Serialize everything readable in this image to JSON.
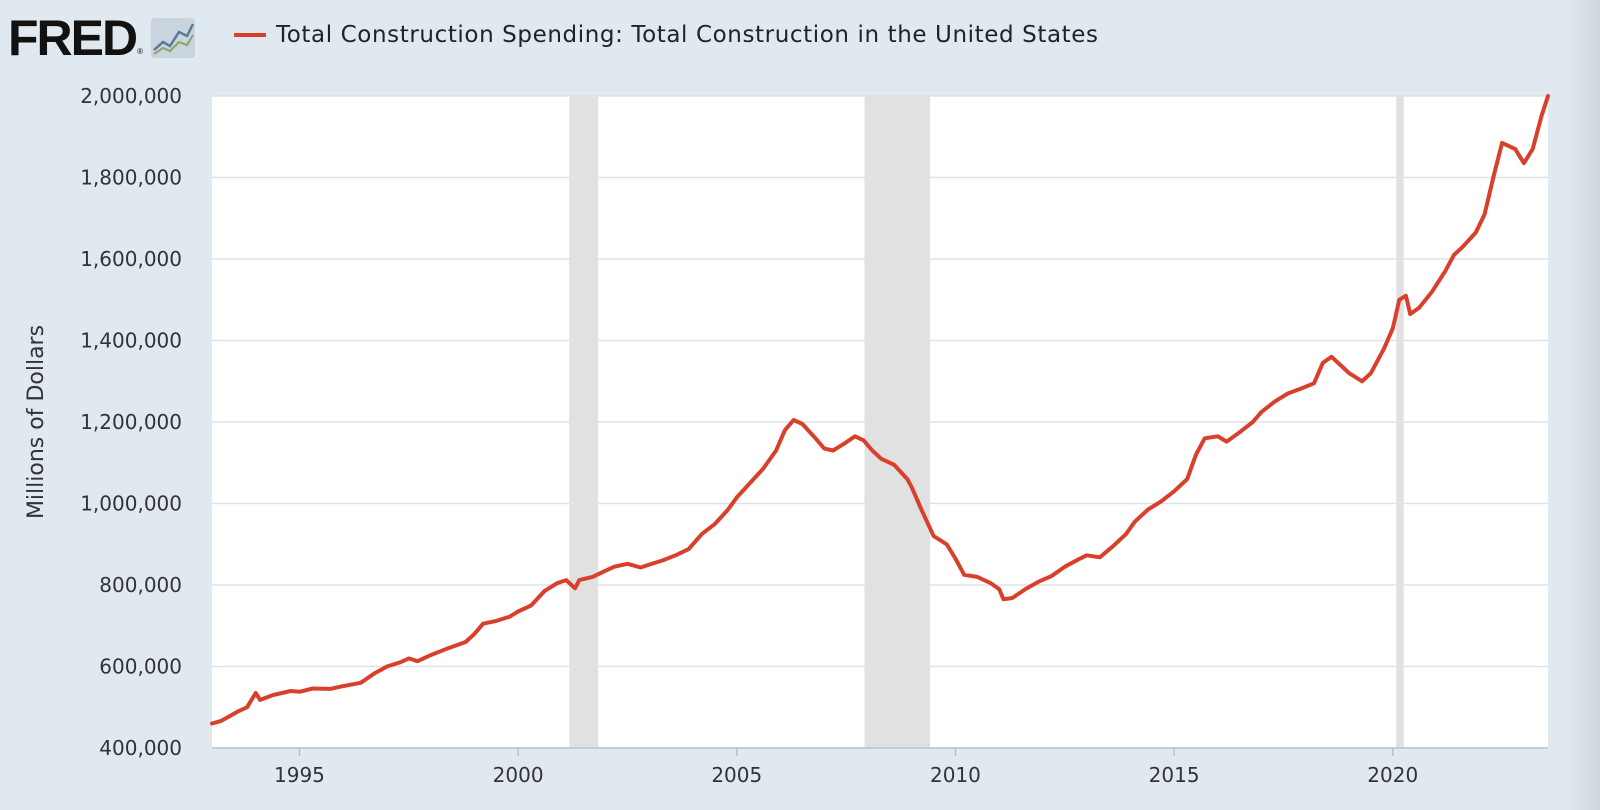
{
  "header": {
    "logo_text": "FRED",
    "logo_reg": "®",
    "logo_icon": "trend-chart-icon",
    "series_label": "Total Construction Spending: Total Construction in the United States"
  },
  "colors": {
    "series": "#d9402b",
    "recession": "#e1e1e1",
    "background": "#e1e9f0",
    "plot": "#ffffff",
    "grid": "#dde3ea"
  },
  "chart_data": {
    "type": "line",
    "title": "",
    "xlabel": "",
    "ylabel": "Millions of Dollars",
    "xlim": [
      1993.0,
      2023.55
    ],
    "ylim": [
      400000,
      2000000
    ],
    "yticks": [
      400000,
      600000,
      800000,
      1000000,
      1200000,
      1400000,
      1600000,
      1800000,
      2000000
    ],
    "ytick_labels": [
      "400,000",
      "600,000",
      "800,000",
      "1,000,000",
      "1,200,000",
      "1,400,000",
      "1,600,000",
      "1,800,000",
      "2,000,000"
    ],
    "xticks": [
      1995,
      2000,
      2005,
      2010,
      2015,
      2020
    ],
    "xtick_labels": [
      "1995",
      "2000",
      "2005",
      "2010",
      "2015",
      "2020"
    ],
    "grid": true,
    "legend": "top-left",
    "recessions": [
      [
        2001.17,
        2001.83
      ],
      [
        2007.92,
        2009.42
      ],
      [
        2020.08,
        2020.25
      ]
    ],
    "series": [
      {
        "name": "Total Construction Spending: Total Construction in the United States",
        "color": "#d9402b",
        "points": [
          [
            1993.0,
            460000
          ],
          [
            1993.2,
            466000
          ],
          [
            1993.4,
            478000
          ],
          [
            1993.6,
            490000
          ],
          [
            1993.8,
            500000
          ],
          [
            1994.0,
            535000
          ],
          [
            1994.1,
            518000
          ],
          [
            1994.4,
            530000
          ],
          [
            1994.8,
            540000
          ],
          [
            1995.0,
            538000
          ],
          [
            1995.3,
            546000
          ],
          [
            1995.7,
            545000
          ],
          [
            1996.0,
            552000
          ],
          [
            1996.4,
            560000
          ],
          [
            1996.7,
            582000
          ],
          [
            1997.0,
            600000
          ],
          [
            1997.3,
            610000
          ],
          [
            1997.5,
            620000
          ],
          [
            1997.7,
            613000
          ],
          [
            1998.0,
            628000
          ],
          [
            1998.4,
            645000
          ],
          [
            1998.8,
            660000
          ],
          [
            1999.0,
            680000
          ],
          [
            1999.2,
            705000
          ],
          [
            1999.5,
            712000
          ],
          [
            1999.8,
            722000
          ],
          [
            2000.0,
            735000
          ],
          [
            2000.3,
            750000
          ],
          [
            2000.6,
            785000
          ],
          [
            2000.9,
            805000
          ],
          [
            2001.1,
            812000
          ],
          [
            2001.3,
            792000
          ],
          [
            2001.4,
            812000
          ],
          [
            2001.7,
            820000
          ],
          [
            2002.0,
            835000
          ],
          [
            2002.2,
            845000
          ],
          [
            2002.5,
            852000
          ],
          [
            2002.8,
            843000
          ],
          [
            2003.0,
            850000
          ],
          [
            2003.3,
            860000
          ],
          [
            2003.6,
            873000
          ],
          [
            2003.9,
            888000
          ],
          [
            2004.2,
            925000
          ],
          [
            2004.5,
            950000
          ],
          [
            2004.8,
            985000
          ],
          [
            2005.0,
            1015000
          ],
          [
            2005.3,
            1050000
          ],
          [
            2005.6,
            1085000
          ],
          [
            2005.9,
            1130000
          ],
          [
            2006.1,
            1180000
          ],
          [
            2006.3,
            1205000
          ],
          [
            2006.5,
            1195000
          ],
          [
            2006.8,
            1160000
          ],
          [
            2007.0,
            1135000
          ],
          [
            2007.2,
            1130000
          ],
          [
            2007.5,
            1150000
          ],
          [
            2007.7,
            1165000
          ],
          [
            2007.9,
            1155000
          ],
          [
            2008.1,
            1130000
          ],
          [
            2008.3,
            1110000
          ],
          [
            2008.6,
            1095000
          ],
          [
            2008.9,
            1060000
          ],
          [
            2009.0,
            1040000
          ],
          [
            2009.2,
            990000
          ],
          [
            2009.5,
            920000
          ],
          [
            2009.8,
            900000
          ],
          [
            2010.0,
            865000
          ],
          [
            2010.2,
            825000
          ],
          [
            2010.5,
            820000
          ],
          [
            2010.8,
            805000
          ],
          [
            2011.0,
            790000
          ],
          [
            2011.1,
            765000
          ],
          [
            2011.3,
            768000
          ],
          [
            2011.6,
            790000
          ],
          [
            2011.9,
            808000
          ],
          [
            2012.2,
            822000
          ],
          [
            2012.5,
            845000
          ],
          [
            2012.8,
            862000
          ],
          [
            2013.0,
            873000
          ],
          [
            2013.3,
            868000
          ],
          [
            2013.6,
            895000
          ],
          [
            2013.9,
            925000
          ],
          [
            2014.1,
            955000
          ],
          [
            2014.4,
            985000
          ],
          [
            2014.7,
            1005000
          ],
          [
            2015.0,
            1030000
          ],
          [
            2015.3,
            1060000
          ],
          [
            2015.5,
            1120000
          ],
          [
            2015.7,
            1160000
          ],
          [
            2016.0,
            1165000
          ],
          [
            2016.2,
            1152000
          ],
          [
            2016.5,
            1175000
          ],
          [
            2016.8,
            1200000
          ],
          [
            2017.0,
            1225000
          ],
          [
            2017.3,
            1250000
          ],
          [
            2017.6,
            1270000
          ],
          [
            2017.9,
            1282000
          ],
          [
            2018.2,
            1295000
          ],
          [
            2018.4,
            1345000
          ],
          [
            2018.6,
            1360000
          ],
          [
            2018.8,
            1340000
          ],
          [
            2019.0,
            1320000
          ],
          [
            2019.3,
            1300000
          ],
          [
            2019.5,
            1320000
          ],
          [
            2019.8,
            1380000
          ],
          [
            2020.0,
            1430000
          ],
          [
            2020.15,
            1500000
          ],
          [
            2020.3,
            1510000
          ],
          [
            2020.4,
            1465000
          ],
          [
            2020.6,
            1480000
          ],
          [
            2020.9,
            1520000
          ],
          [
            2021.2,
            1570000
          ],
          [
            2021.4,
            1610000
          ],
          [
            2021.6,
            1630000
          ],
          [
            2021.9,
            1665000
          ],
          [
            2022.1,
            1710000
          ],
          [
            2022.3,
            1800000
          ],
          [
            2022.5,
            1885000
          ],
          [
            2022.8,
            1870000
          ],
          [
            2023.0,
            1835000
          ],
          [
            2023.2,
            1870000
          ],
          [
            2023.4,
            1950000
          ],
          [
            2023.55,
            2000000
          ]
        ]
      }
    ]
  }
}
